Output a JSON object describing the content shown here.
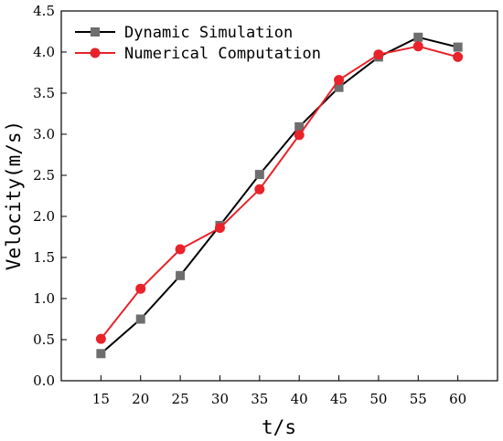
{
  "chart_data": {
    "type": "line",
    "title": "",
    "xlabel": "t/s",
    "ylabel": "Velocity(m/s)",
    "x": [
      15,
      20,
      25,
      30,
      35,
      40,
      45,
      50,
      55,
      60
    ],
    "xlim": [
      10,
      65
    ],
    "ylim": [
      0,
      4.5
    ],
    "yticks": [
      "0.0",
      "0.5",
      "1.0",
      "1.5",
      "2.0",
      "2.5",
      "3.0",
      "3.5",
      "4.0",
      "4.5"
    ],
    "xticks": [
      "15",
      "20",
      "25",
      "30",
      "35",
      "40",
      "45",
      "50",
      "55",
      "60"
    ],
    "grid": false,
    "legend_position": "top-left",
    "series": [
      {
        "name": "Dynamic Simulation",
        "color": "#000000",
        "marker_color": "#6e6e6e",
        "marker": "square",
        "values": [
          0.33,
          0.75,
          1.28,
          1.89,
          2.51,
          3.09,
          3.57,
          3.94,
          4.18,
          4.06
        ]
      },
      {
        "name": "Numerical Computation",
        "color": "#e8232a",
        "marker_color": "#e8232a",
        "marker": "circle",
        "values": [
          0.51,
          1.12,
          1.6,
          1.86,
          2.33,
          2.99,
          3.66,
          3.97,
          4.07,
          3.94
        ]
      }
    ]
  }
}
